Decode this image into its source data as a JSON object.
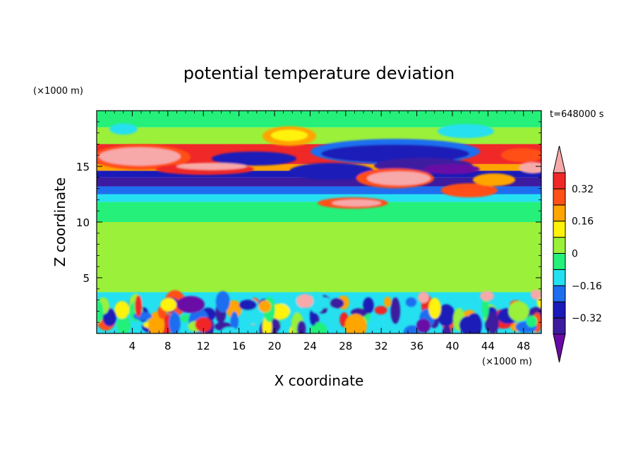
{
  "chart_data": {
    "type": "heatmap",
    "title": "potential temperature deviation",
    "xlabel": "X coordinate",
    "ylabel": "Z coordinate",
    "x_unit": "(×1000 m)",
    "y_unit": "(×1000 m)",
    "time_label": "t=648000 s",
    "xlim": [
      0,
      50
    ],
    "ylim": [
      0,
      20
    ],
    "x_ticks": [
      4,
      8,
      12,
      16,
      20,
      24,
      28,
      32,
      36,
      40,
      44,
      48
    ],
    "y_ticks": [
      5,
      10,
      15
    ],
    "colorbar": {
      "levels": [
        -0.4,
        -0.32,
        -0.24,
        -0.16,
        -0.08,
        0,
        0.08,
        0.16,
        0.24,
        0.32,
        0.4
      ],
      "tick_labels": [
        "0.32",
        "0.16",
        "0",
        "−0.16",
        "−0.32"
      ],
      "tick_values": [
        0.32,
        0.16,
        0,
        -0.16,
        -0.32
      ],
      "colors": [
        "#6a0aa6",
        "#3c1ba0",
        "#1a1ab8",
        "#1f6ef0",
        "#25e0f0",
        "#24f07a",
        "#9bf03a",
        "#fff20a",
        "#ffa500",
        "#ff5018",
        "#f02828",
        "#f7a9a9"
      ]
    },
    "field_bands": [
      {
        "z": [
          18.5,
          20
        ],
        "level": 0
      },
      {
        "z": [
          17,
          18.5
        ],
        "level": 0.08
      },
      {
        "z": [
          15.2,
          17
        ],
        "level": 0.4
      },
      {
        "z": [
          14.6,
          15.2
        ],
        "level": 0.24
      },
      {
        "z": [
          14,
          14.6
        ],
        "level": -0.24
      },
      {
        "z": [
          13.2,
          14
        ],
        "level": -0.32
      },
      {
        "z": [
          12.5,
          13.2
        ],
        "level": -0.16
      },
      {
        "z": [
          11.8,
          12.5
        ],
        "level": -0.08
      },
      {
        "z": [
          10,
          11.8
        ],
        "level": 0
      },
      {
        "z": [
          3.7,
          10
        ],
        "level": 0.08
      },
      {
        "z": [
          0,
          3.7
        ],
        "level": -0.08
      }
    ]
  }
}
